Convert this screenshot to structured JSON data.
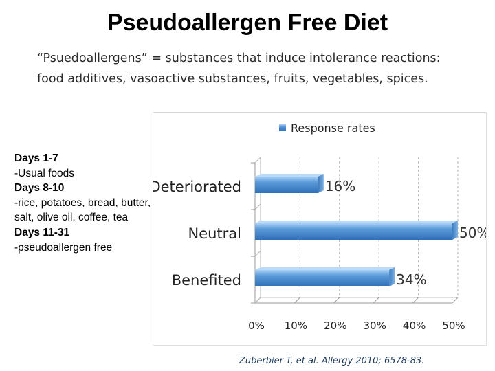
{
  "slide": {
    "title": "Pseudoallergen Free Diet",
    "subtitle_line1": "“Psuedoallergens” = substances that induce intolerance reactions:",
    "subtitle_line2": "food additives, vasoactive substances, fruits, vegetables, spices.",
    "days": [
      {
        "heading": "Days 1-7",
        "text": "-Usual foods"
      },
      {
        "heading": "Days 8-10",
        "text": "-rice, potatoes, bread, butter, salt, olive oil, coffee, tea"
      },
      {
        "heading": "Days 11-31",
        "text": "-pseudoallergen free"
      }
    ],
    "citation": "Zuberbier T, et al. Allergy 2010; 6578-83."
  },
  "colors": {
    "bar": "#4f8fd0",
    "bar_light": "#9cc8f0",
    "grid": "#b0b0b0"
  },
  "chart_data": {
    "type": "bar",
    "orientation": "horizontal",
    "legend": "Response rates",
    "legend_position": "top-left",
    "categories": [
      "Deteriorated",
      "Neutral",
      "Benefited"
    ],
    "values": [
      16,
      50,
      34
    ],
    "value_labels": [
      "16%",
      "50%",
      "34%"
    ],
    "xlim": [
      0,
      50
    ],
    "xticks": [
      0,
      10,
      20,
      30,
      40,
      50
    ],
    "xtick_labels": [
      "0%",
      "10%",
      "20%",
      "30%",
      "40%",
      "50%"
    ],
    "grid": true
  }
}
